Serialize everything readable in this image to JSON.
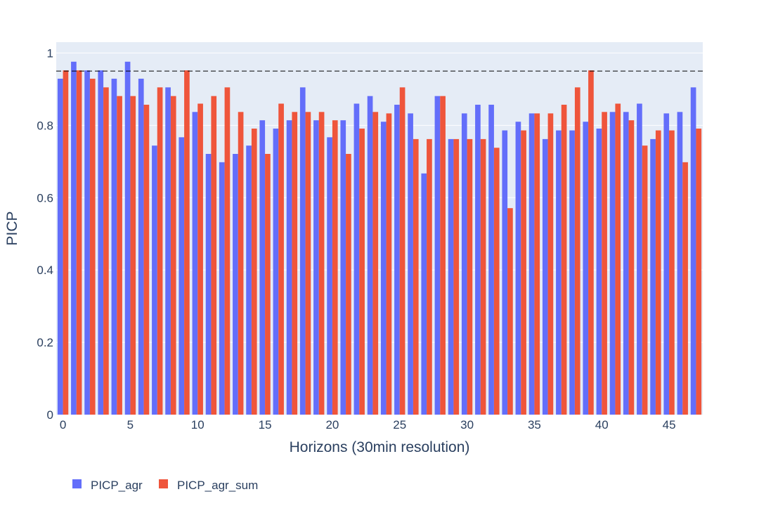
{
  "chart_data": {
    "type": "bar",
    "title": "",
    "xlabel": "Horizons (30min resolution)",
    "ylabel": "PICP",
    "x": [
      0,
      1,
      2,
      3,
      4,
      5,
      6,
      7,
      8,
      9,
      10,
      11,
      12,
      13,
      14,
      15,
      16,
      17,
      18,
      19,
      20,
      21,
      22,
      23,
      24,
      25,
      26,
      27,
      28,
      29,
      30,
      31,
      32,
      33,
      34,
      35,
      36,
      37,
      38,
      39,
      40,
      41,
      42,
      43,
      44,
      45,
      46,
      47
    ],
    "xlim": [
      -0.5,
      47.5
    ],
    "ylim": [
      0,
      1.03
    ],
    "x_ticks": [
      0,
      5,
      10,
      15,
      20,
      25,
      30,
      35,
      40,
      45
    ],
    "y_ticks": [
      0,
      0.2,
      0.4,
      0.6,
      0.8,
      1
    ],
    "y_tick_labels": [
      "0",
      "0.2",
      "0.4",
      "0.6",
      "0.8",
      "1"
    ],
    "reference_line": {
      "y": 0.95,
      "style": "dashed",
      "color": "#000000"
    },
    "grid": true,
    "background": "#e5ecf6",
    "legend_position": "bottom-left",
    "series": [
      {
        "name": "PICP_agr",
        "color": "#636efa",
        "values": [
          0.929,
          0.976,
          0.952,
          0.952,
          0.929,
          0.976,
          0.929,
          0.744,
          0.905,
          0.767,
          0.837,
          0.721,
          0.698,
          0.721,
          0.744,
          0.814,
          0.791,
          0.814,
          0.905,
          0.814,
          0.767,
          0.814,
          0.86,
          0.881,
          0.81,
          0.857,
          0.833,
          0.667,
          0.881,
          0.762,
          0.833,
          0.857,
          0.857,
          0.786,
          0.81,
          0.833,
          0.762,
          0.786,
          0.786,
          0.81,
          0.791,
          0.837,
          0.837,
          0.86,
          0.762,
          0.833,
          0.837,
          0.905
        ]
      },
      {
        "name": "PICP_agr_sum",
        "color": "#ef553b",
        "values": [
          0.952,
          0.952,
          0.929,
          0.905,
          0.881,
          0.881,
          0.857,
          0.905,
          0.881,
          0.952,
          0.86,
          0.881,
          0.905,
          0.837,
          0.791,
          0.721,
          0.86,
          0.837,
          0.837,
          0.837,
          0.814,
          0.721,
          0.791,
          0.837,
          0.833,
          0.905,
          0.762,
          0.762,
          0.881,
          0.762,
          0.762,
          0.762,
          0.738,
          0.571,
          0.786,
          0.833,
          0.833,
          0.857,
          0.905,
          0.952,
          0.837,
          0.86,
          0.814,
          0.744,
          0.786,
          0.786,
          0.698,
          0.791
        ]
      }
    ]
  }
}
